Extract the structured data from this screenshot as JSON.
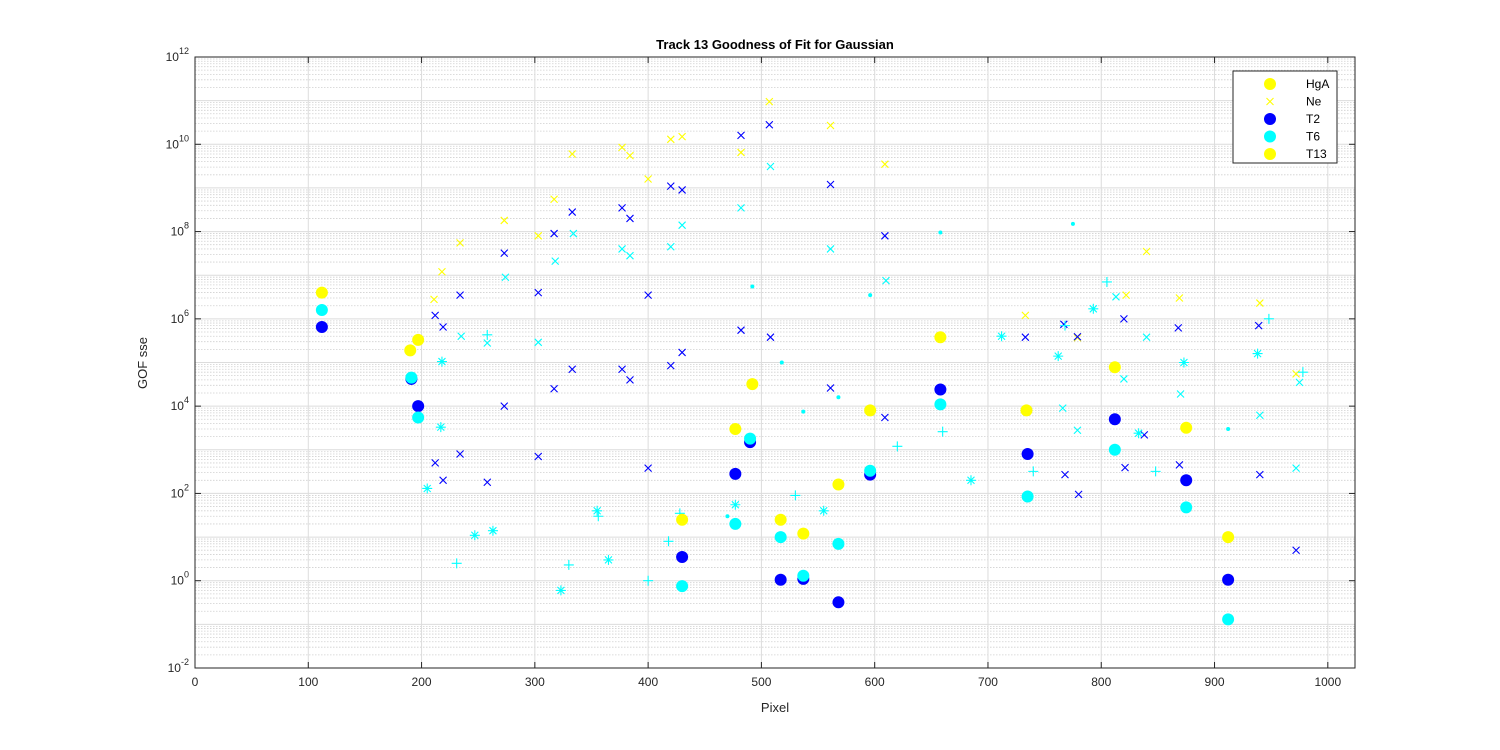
{
  "chart_data": {
    "type": "scatter",
    "title": "Track 13  Goodness of Fit for Gaussian",
    "xlabel": "Pixel",
    "ylabel": "GOF sse",
    "xlim": [
      0,
      1024
    ],
    "ylim": [
      0.01,
      1000000000000
    ],
    "yscale": "log",
    "xticks": [
      "0",
      "100",
      "200",
      "300",
      "400",
      "500",
      "600",
      "700",
      "800",
      "900",
      "1000"
    ],
    "yticks": [
      {
        "base": "10",
        "exp": "-2",
        "value": 0.01
      },
      {
        "base": "10",
        "exp": "0",
        "value": 1
      },
      {
        "base": "10",
        "exp": "2",
        "value": 100
      },
      {
        "base": "10",
        "exp": "4",
        "value": 10000
      },
      {
        "base": "10",
        "exp": "6",
        "value": 1000000
      },
      {
        "base": "10",
        "exp": "8",
        "value": 100000000
      },
      {
        "base": "10",
        "exp": "10",
        "value": 10000000000
      },
      {
        "base": "10",
        "exp": "12",
        "value": 1000000000000
      }
    ],
    "grid": "major and minor",
    "legend_position": "top-right",
    "legend": [
      {
        "label": "HgA",
        "marker": "circle",
        "color": "#ffff00"
      },
      {
        "label": "Ne",
        "marker": "x",
        "color": "#ffff00"
      },
      {
        "label": "T2",
        "marker": "circle",
        "color": "#0000ff"
      },
      {
        "label": "T6",
        "marker": "circle",
        "color": "#00ffff"
      },
      {
        "label": "T13",
        "marker": "circle",
        "color": "#ffff00"
      }
    ],
    "series": [
      {
        "marker": "circle",
        "color": "#ffff00",
        "points": [
          [
            112,
            4000000
          ],
          [
            190,
            190000
          ],
          [
            197,
            330000
          ],
          [
            430,
            25
          ],
          [
            477,
            3000
          ],
          [
            492,
            32000
          ],
          [
            517,
            25
          ],
          [
            537,
            12
          ],
          [
            568,
            160
          ],
          [
            596,
            8000
          ],
          [
            658,
            380000
          ],
          [
            734,
            8000
          ],
          [
            812,
            78000
          ],
          [
            875,
            3200
          ],
          [
            912,
            10
          ]
        ]
      },
      {
        "marker": "circle",
        "color": "#0000ff",
        "points": [
          [
            112,
            650000
          ],
          [
            191,
            42000
          ],
          [
            197,
            10000
          ],
          [
            430,
            3.5
          ],
          [
            477,
            280
          ],
          [
            490,
            1500
          ],
          [
            517,
            1.05
          ],
          [
            537,
            1.1
          ],
          [
            568,
            0.32
          ],
          [
            596,
            270
          ],
          [
            658,
            24000
          ],
          [
            735,
            800
          ],
          [
            812,
            5000
          ],
          [
            875,
            200
          ],
          [
            912,
            1.05
          ]
        ]
      },
      {
        "marker": "circle",
        "color": "#00ffff",
        "points": [
          [
            112,
            1600000
          ],
          [
            191,
            45000
          ],
          [
            197,
            5500
          ],
          [
            430,
            0.75
          ],
          [
            477,
            20
          ],
          [
            490,
            1800
          ],
          [
            517,
            10
          ],
          [
            537,
            1.3
          ],
          [
            568,
            7
          ],
          [
            596,
            330
          ],
          [
            658,
            11000
          ],
          [
            735,
            85
          ],
          [
            812,
            1000
          ],
          [
            875,
            48
          ],
          [
            912,
            0.13
          ]
        ]
      },
      {
        "marker": "x",
        "color": "#ffff00",
        "points": [
          [
            211,
            2800000
          ],
          [
            218,
            12000000
          ],
          [
            234,
            55000000
          ],
          [
            273,
            180000000
          ],
          [
            303,
            80000000
          ],
          [
            317,
            550000000
          ],
          [
            333,
            6000000000
          ],
          [
            377,
            8500000000
          ],
          [
            384,
            5500000000
          ],
          [
            400,
            1600000000
          ],
          [
            420,
            13000000000
          ],
          [
            430,
            15000000000
          ],
          [
            482,
            6500000000
          ],
          [
            507,
            95000000000
          ],
          [
            561,
            27000000000
          ],
          [
            609,
            3500000000
          ],
          [
            733,
            1200000
          ],
          [
            779,
            370000
          ],
          [
            822,
            3500000
          ],
          [
            840,
            35000000
          ],
          [
            869,
            3000000
          ],
          [
            940,
            2300000
          ],
          [
            972,
            55000
          ]
        ]
      },
      {
        "marker": "x",
        "color": "#0000ff",
        "points": [
          [
            212,
            1200000
          ],
          [
            219,
            650000
          ],
          [
            234,
            3500000
          ],
          [
            273,
            32000000
          ],
          [
            303,
            4000000
          ],
          [
            317,
            90000000
          ],
          [
            333,
            280000000
          ],
          [
            377,
            350000000
          ],
          [
            384,
            200000000
          ],
          [
            400,
            3500000
          ],
          [
            420,
            1100000000
          ],
          [
            430,
            900000000
          ],
          [
            482,
            16000000000
          ],
          [
            507,
            28000000000
          ],
          [
            561,
            1200000000
          ],
          [
            609,
            80000000
          ],
          [
            212,
            500
          ],
          [
            219,
            200
          ],
          [
            234,
            800
          ],
          [
            258,
            180
          ],
          [
            273,
            10000
          ],
          [
            303,
            700
          ],
          [
            317,
            25000
          ],
          [
            333,
            70000
          ],
          [
            377,
            70000
          ],
          [
            384,
            40000
          ],
          [
            400,
            380
          ],
          [
            420,
            85000
          ],
          [
            430,
            170000
          ],
          [
            482,
            550000
          ],
          [
            508,
            380000
          ],
          [
            561,
            26000
          ],
          [
            609,
            5500
          ],
          [
            733,
            380000
          ],
          [
            767,
            750000
          ],
          [
            779,
            390000
          ],
          [
            768,
            270
          ],
          [
            780,
            95
          ],
          [
            820,
            1000000
          ],
          [
            838,
            2200
          ],
          [
            821,
            390
          ],
          [
            868,
            620000
          ],
          [
            869,
            450
          ],
          [
            939,
            700000
          ],
          [
            940,
            270
          ],
          [
            972,
            5
          ]
        ]
      },
      {
        "marker": "x",
        "color": "#00ffff",
        "points": [
          [
            235,
            400000
          ],
          [
            258,
            280000
          ],
          [
            274,
            9000000
          ],
          [
            303,
            290000
          ],
          [
            318,
            21000000
          ],
          [
            334,
            90000000
          ],
          [
            377,
            40000000
          ],
          [
            384,
            28000000
          ],
          [
            420,
            45000000
          ],
          [
            430,
            140000000
          ],
          [
            482,
            350000000
          ],
          [
            508,
            3100000000
          ],
          [
            561,
            40000000
          ],
          [
            610,
            7500000
          ],
          [
            766,
            9000
          ],
          [
            779,
            2800
          ],
          [
            813,
            3200000
          ],
          [
            820,
            42000
          ],
          [
            840,
            380000
          ],
          [
            870,
            19000
          ],
          [
            940,
            6200
          ],
          [
            972,
            380
          ],
          [
            975,
            35000
          ]
        ]
      },
      {
        "marker": "plus",
        "color": "#00ffff",
        "points": [
          [
            231,
            2.5
          ],
          [
            258,
            430000
          ],
          [
            330,
            2.3
          ],
          [
            356,
            30
          ],
          [
            400,
            1
          ],
          [
            418,
            8
          ],
          [
            428,
            35
          ],
          [
            530,
            90
          ],
          [
            620,
            1200
          ],
          [
            660,
            2600
          ],
          [
            740,
            320
          ],
          [
            768,
            700000
          ],
          [
            805,
            7000000
          ],
          [
            848,
            320
          ],
          [
            948,
            1000000
          ],
          [
            978,
            60000
          ]
        ]
      },
      {
        "marker": "asterisk",
        "color": "#00ffff",
        "points": [
          [
            217,
            3300
          ],
          [
            205,
            130
          ],
          [
            247,
            11
          ],
          [
            263,
            14
          ],
          [
            218,
            105000
          ],
          [
            323,
            0.6
          ],
          [
            355,
            40
          ],
          [
            365,
            3
          ],
          [
            477,
            55
          ],
          [
            555,
            40
          ],
          [
            685,
            200
          ],
          [
            712,
            400000
          ],
          [
            762,
            140000
          ],
          [
            793,
            1700000
          ],
          [
            833,
            2400
          ],
          [
            873,
            100000
          ],
          [
            938,
            160000
          ]
        ]
      },
      {
        "marker": "dot",
        "color": "#00ffff",
        "points": [
          [
            470,
            30
          ],
          [
            492,
            5500000
          ],
          [
            518,
            100000
          ],
          [
            537,
            7500
          ],
          [
            568,
            16000
          ],
          [
            596,
            3500000
          ],
          [
            658,
            95000000
          ],
          [
            775,
            150000000
          ],
          [
            912,
            3000
          ]
        ]
      }
    ]
  }
}
